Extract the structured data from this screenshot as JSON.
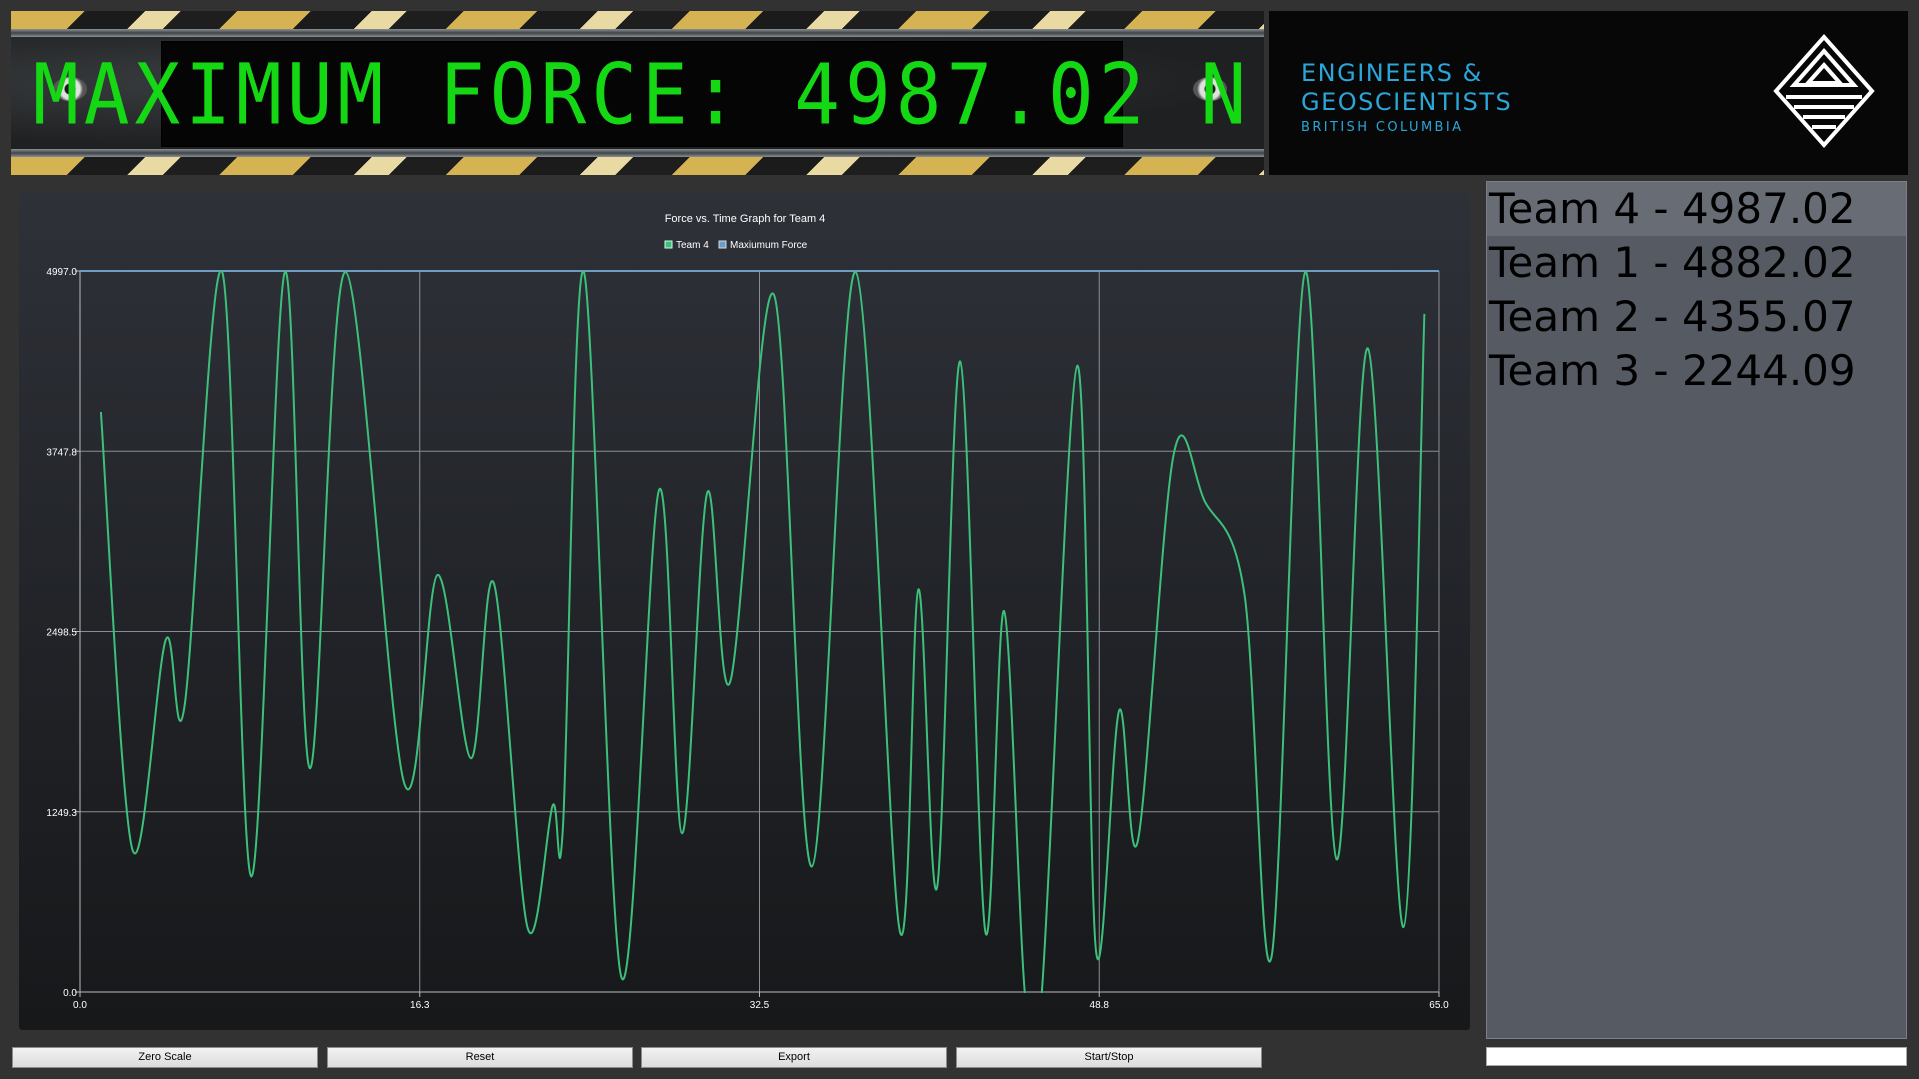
{
  "banner": {
    "text": "MAXIMUM FORCE: 4987.02 N"
  },
  "logo": {
    "line1": "ENGINEERS &",
    "line2": "GEOSCIENTISTS",
    "line3": "BRITISH COLUMBIA"
  },
  "chart_data": {
    "type": "line",
    "title": "Force vs. Time Graph for Team 4",
    "legend_position": "top",
    "grid": true,
    "xlim": [
      0.0,
      65.0
    ],
    "ylim": [
      0.0,
      4997.0
    ],
    "x_ticks": [
      "0.0",
      "16.3",
      "32.5",
      "48.8",
      "65.0"
    ],
    "y_ticks": [
      "0.0",
      "1249.3",
      "2498.5",
      "3747.8",
      "4997.0"
    ],
    "series": [
      {
        "name": "Team 4",
        "color": "#3cc07a",
        "points": [
          [
            1.0,
            4020
          ],
          [
            2.5,
            990
          ],
          [
            4.1,
            2440
          ],
          [
            5.0,
            1980
          ],
          [
            6.8,
            4990
          ],
          [
            8.2,
            800
          ],
          [
            9.8,
            4990
          ],
          [
            11.0,
            1550
          ],
          [
            12.7,
            4990
          ],
          [
            15.5,
            1450
          ],
          [
            17.1,
            2890
          ],
          [
            18.7,
            1620
          ],
          [
            19.8,
            2830
          ],
          [
            21.4,
            450
          ],
          [
            22.6,
            1290
          ],
          [
            23.1,
            1150
          ],
          [
            24.1,
            4990
          ],
          [
            25.9,
            100
          ],
          [
            27.7,
            3480
          ],
          [
            28.8,
            1100
          ],
          [
            30.0,
            3460
          ],
          [
            31.1,
            2150
          ],
          [
            33.2,
            4830
          ],
          [
            35.0,
            870
          ],
          [
            37.1,
            4990
          ],
          [
            39.2,
            430
          ],
          [
            40.1,
            2790
          ],
          [
            41.0,
            730
          ],
          [
            42.1,
            4370
          ],
          [
            43.3,
            420
          ],
          [
            44.2,
            2640
          ],
          [
            45.2,
            -20
          ],
          [
            46.0,
            0
          ],
          [
            47.7,
            4340
          ],
          [
            48.6,
            280
          ],
          [
            49.7,
            1950
          ],
          [
            50.6,
            1050
          ],
          [
            52.3,
            3720
          ],
          [
            53.8,
            3400
          ],
          [
            55.7,
            2750
          ],
          [
            57.0,
            250
          ],
          [
            58.6,
            4990
          ],
          [
            60.1,
            920
          ],
          [
            61.6,
            4460
          ],
          [
            63.3,
            450
          ],
          [
            64.3,
            4700
          ]
        ]
      },
      {
        "name": "Maxiumum Force",
        "color": "#6f9cc2",
        "y_constant": 4997.0
      }
    ]
  },
  "leaderboard": {
    "items": [
      {
        "label": "Team 4 - 4987.02",
        "selected": true
      },
      {
        "label": "Team 1 - 4882.02",
        "selected": false
      },
      {
        "label": "Team 2 - 4355.07",
        "selected": false
      },
      {
        "label": "Team 3 - 2244.09",
        "selected": false
      }
    ]
  },
  "buttons": {
    "zero_scale": "Zero Scale",
    "reset": "Reset",
    "export": "Export",
    "start_stop": "Start/Stop"
  }
}
